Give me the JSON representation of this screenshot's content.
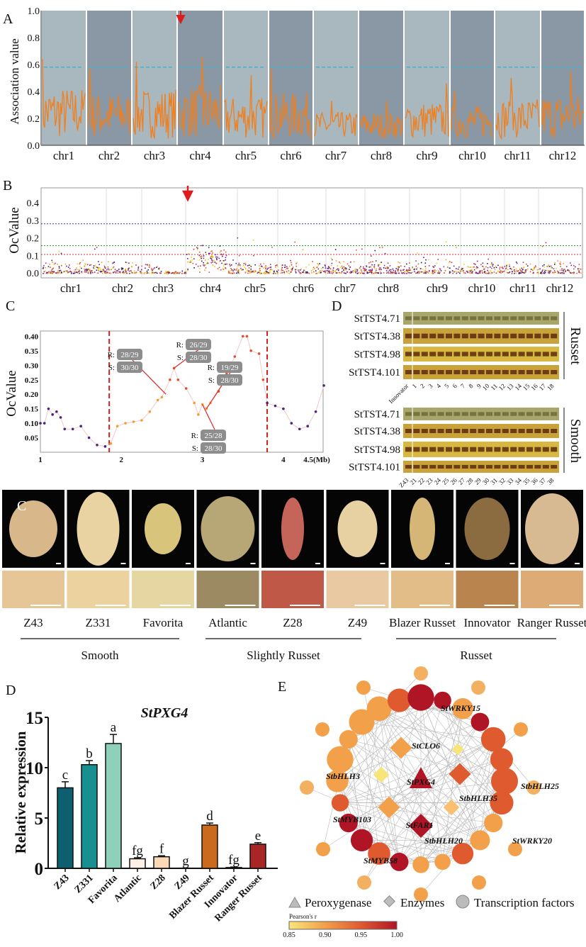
{
  "panel_letters": {
    "A": "A",
    "B": "B",
    "C": "C",
    "D": "D",
    "C2": "C",
    "D2": "D",
    "E": "E"
  },
  "chart_data": [
    {
      "id": "A",
      "type": "line",
      "ylabel": "Association value",
      "ylim": [
        0,
        1.0
      ],
      "yticks": [
        "0.0",
        "0.2",
        "0.4",
        "0.6",
        "0.8",
        "1.0"
      ],
      "categories": [
        "chr1",
        "chr2",
        "chr3",
        "chr4",
        "chr5",
        "chr6",
        "chr7",
        "chr8",
        "chr9",
        "chr10",
        "chr11",
        "chr12"
      ],
      "peak_values": [
        0.64,
        0.57,
        0.62,
        0.66,
        0.52,
        0.57,
        0.33,
        0.33,
        0.46,
        0.41,
        0.5,
        0.55
      ],
      "threshold": 0.58,
      "arrow_at": "chr4",
      "colors": {
        "line": "#f07f1e",
        "threshold": "#3fb4d0",
        "band_light": "#a9b7bf",
        "band_dark": "#8a97a5",
        "arrow": "#e01b1b"
      }
    },
    {
      "id": "B",
      "type": "scatter",
      "ylabel": "OcValue",
      "ylim": [
        0,
        0.47
      ],
      "yticks": [
        "0.0",
        "0.1",
        "0.2",
        "0.3",
        "0.4"
      ],
      "categories": [
        "chr1",
        "chr2",
        "chr3",
        "chr4",
        "chr5",
        "chr6",
        "chr7",
        "chr8",
        "chr9",
        "chr10",
        "chr11",
        "chr12"
      ],
      "max_value": 0.43,
      "thresholds": [
        {
          "value": 0.28,
          "color": "#3a3a9a"
        },
        {
          "value": 0.155,
          "color": "#2e8b2e"
        },
        {
          "value": 0.105,
          "color": "#d43030"
        }
      ],
      "arrow_at": "chr4",
      "grid": true,
      "colors": {
        "points": [
          "#2a1a6e",
          "#6a1f8a",
          "#b0306e",
          "#e0502e",
          "#f5a02a",
          "#e8d21e"
        ]
      }
    },
    {
      "id": "C",
      "type": "line",
      "ylabel": "OcValue",
      "xlabel_unit": "(Mb)",
      "xlim": [
        1,
        4.5
      ],
      "ylim": [
        0,
        0.41
      ],
      "xticks": [
        "1",
        "2",
        "3",
        "4",
        "4.5(Mb)"
      ],
      "yticks": [
        "0.05",
        "0.10",
        "0.15",
        "0.20",
        "0.25",
        "0.30",
        "0.35",
        "0.40"
      ],
      "boundaries": [
        1.85,
        3.8
      ],
      "x": [
        1.0,
        1.05,
        1.1,
        1.15,
        1.2,
        1.25,
        1.3,
        1.4,
        1.5,
        1.6,
        1.7,
        1.8,
        1.87,
        1.95,
        2.05,
        2.15,
        2.25,
        2.35,
        2.45,
        2.5,
        2.6,
        2.65,
        2.7,
        2.8,
        2.9,
        2.95,
        3.0,
        3.05,
        3.1,
        3.2,
        3.3,
        3.4,
        3.5,
        3.55,
        3.6,
        3.7,
        3.75,
        3.8,
        3.9,
        4.0,
        4.1,
        4.2,
        4.3,
        4.4,
        4.5
      ],
      "y": [
        0.1,
        0.1,
        0.15,
        0.13,
        0.14,
        0.12,
        0.08,
        0.08,
        0.09,
        0.05,
        0.025,
        0.02,
        0.03,
        0.09,
        0.1,
        0.105,
        0.11,
        0.14,
        0.18,
        0.19,
        0.25,
        0.29,
        0.25,
        0.22,
        0.17,
        0.13,
        0.165,
        0.15,
        0.17,
        0.21,
        0.27,
        0.33,
        0.4,
        0.4,
        0.35,
        0.34,
        0.25,
        0.17,
        0.16,
        0.15,
        0.1,
        0.08,
        0.09,
        0.14,
        0.23
      ],
      "annotations": [
        {
          "R": "28/29",
          "S": "30/30",
          "at_x": 2.55
        },
        {
          "R": "26/29",
          "S": "28/30",
          "at_x": 2.65
        },
        {
          "R": "19/29",
          "S": "28/30",
          "at_x": 3.05
        },
        {
          "R": "25/28",
          "S": "28/30",
          "at_x": 3.0
        }
      ],
      "annotation_prefix": {
        "R": "R:",
        "S": "S:"
      }
    },
    {
      "id": "D",
      "type": "bar",
      "title": "StPXG4",
      "ylabel": "Relative expression",
      "ylim": [
        0,
        15
      ],
      "yticks": [
        "0",
        "5",
        "10",
        "15"
      ],
      "categories": [
        "Z43",
        "Z331",
        "Favorita",
        "Atlantic",
        "Z28",
        "Z49",
        "Blazer Russet",
        "Innovator",
        "Ranger Russet"
      ],
      "values": [
        8.0,
        10.3,
        12.4,
        0.95,
        1.15,
        0.02,
        4.3,
        0.08,
        2.4
      ],
      "errors": [
        0.6,
        0.4,
        0.9,
        0.1,
        0.1,
        0.01,
        0.2,
        0.05,
        0.15
      ],
      "letters": [
        "c",
        "b",
        "a",
        "fg",
        "f",
        "g",
        "d",
        "fg",
        "e"
      ],
      "colors": [
        "#0d5f6f",
        "#17908f",
        "#8fd0bb",
        "#fdf1e7",
        "#fbd8b6",
        "#ffffff",
        "#c96a1e",
        "#f2f2f2",
        "#a82626"
      ]
    }
  ],
  "gel": {
    "markers": [
      "StTST4.71",
      "StTST4.38",
      "StTST4.98",
      "StTST4.101"
    ],
    "russet": {
      "label": "Russet",
      "lanes": [
        "Innovator",
        "1",
        "2",
        "3",
        "4",
        "5",
        "6",
        "7",
        "8",
        "9",
        "10",
        "11",
        "12",
        "13",
        "14",
        "15",
        "16",
        "17",
        "18"
      ]
    },
    "smooth": {
      "label": "Smooth",
      "lanes": [
        "Z43",
        "21",
        "22",
        "23",
        "24",
        "25",
        "26",
        "27",
        "28",
        "29",
        "30",
        "31",
        "32",
        "33",
        "34",
        "35",
        "36",
        "37",
        "38"
      ]
    }
  },
  "tubers": {
    "varieties": [
      {
        "name": "Z43",
        "skin": "#d8b88a",
        "texture": "#e6c596"
      },
      {
        "name": "Z331",
        "skin": "#e9d3a2",
        "texture": "#ecd29e"
      },
      {
        "name": "Favorita",
        "skin": "#d9c47c",
        "texture": "#e6d7a2"
      },
      {
        "name": "Atlantic",
        "skin": "#b7a676",
        "texture": "#9c8b62"
      },
      {
        "name": "Z28",
        "skin": "#c5655a",
        "texture": "#c05848"
      },
      {
        "name": "Z49",
        "skin": "#e7d0a2",
        "texture": "#e8c9a2"
      },
      {
        "name": "Blazer Russet",
        "skin": "#d6b676",
        "texture": "#e2bd88"
      },
      {
        "name": "Innovator",
        "skin": "#8b6b40",
        "texture": "#b9844e"
      },
      {
        "name": "Ranger Russet",
        "skin": "#d8ba92",
        "texture": "#dcab76"
      }
    ],
    "groups": [
      "Smooth",
      "Slightly Russet",
      "Russet"
    ]
  },
  "network": {
    "labels": [
      "StWRKY15",
      "StCLO6",
      "StbHLH3",
      "StPXG4",
      "StbHLH35",
      "StbHLH25",
      "StMYB103",
      "StFAR1",
      "StbHLH20",
      "StWRKY20",
      "StMYB58"
    ],
    "legend": [
      "Peroxygenase",
      "Enzymes",
      "Transcription factors"
    ],
    "colorbar": {
      "title": "Pearson's r",
      "ticks": [
        "0.85",
        "0.90",
        "0.95",
        "1.00"
      ],
      "colors": [
        "#f8e57a",
        "#f2a04a",
        "#e05a30",
        "#b01525"
      ]
    }
  }
}
